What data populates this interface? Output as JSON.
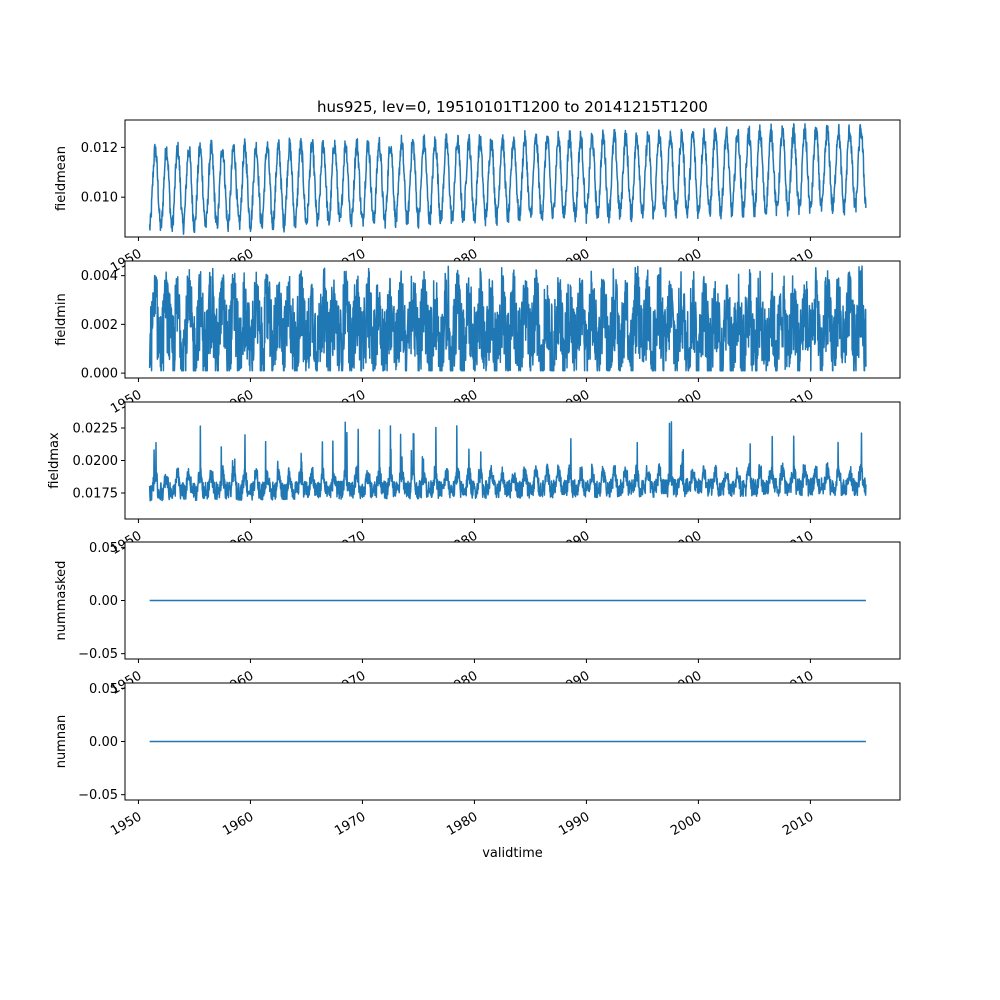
{
  "chart_data": {
    "type": "line",
    "title": "hus925, lev=0, 19510101T1200 to 20141215T1200",
    "xlabel": "validtime",
    "x_start": "1951-01-01",
    "x_end": "2014-12-15",
    "xlim": [
      1948.8,
      2018.0
    ],
    "x_ticks": [
      1950,
      1960,
      1970,
      1980,
      1990,
      2000,
      2010
    ],
    "x_tick_labels": [
      "1950",
      "1960",
      "1970",
      "1980",
      "1990",
      "2000",
      "2010"
    ],
    "line_color": "#1f77b4",
    "subplots": [
      {
        "ylabel": "fieldmean",
        "ylim": [
          0.0084,
          0.0131
        ],
        "yticks": [
          0.01,
          0.012
        ],
        "ytick_labels": [
          "0.010",
          "0.012"
        ],
        "pattern": "seasonal",
        "seasonal_min": [
          0.0088,
          0.0096
        ],
        "seasonal_max": [
          0.0119,
          0.0127
        ],
        "series": [
          {
            "values": []
          }
        ]
      },
      {
        "ylabel": "fieldmin",
        "ylim": [
          -0.0002,
          0.0046
        ],
        "yticks": [
          0.0,
          0.002,
          0.004
        ],
        "ytick_labels": [
          "0.000",
          "0.002",
          "0.004"
        ],
        "pattern": "noisy",
        "range": [
          0.0001,
          0.0044
        ],
        "series": [
          {
            "values": []
          }
        ]
      },
      {
        "ylabel": "fieldmax",
        "ylim": [
          0.0155,
          0.0245
        ],
        "yticks": [
          0.0175,
          0.02,
          0.0225
        ],
        "ytick_labels": [
          "0.0175",
          "0.0200",
          "0.0225"
        ],
        "pattern": "spiky",
        "range": [
          0.016,
          0.0243
        ],
        "series": [
          {
            "values": []
          }
        ]
      },
      {
        "ylabel": "nummasked",
        "ylim": [
          -0.055,
          0.055
        ],
        "yticks": [
          -0.05,
          0.0,
          0.05
        ],
        "ytick_labels": [
          "−0.05",
          "0.00",
          "0.05"
        ],
        "pattern": "constant",
        "value": 0.0,
        "series": [
          {
            "values": [
              0.0,
              0.0
            ]
          }
        ]
      },
      {
        "ylabel": "numnan",
        "ylim": [
          -0.055,
          0.055
        ],
        "yticks": [
          -0.05,
          0.0,
          0.05
        ],
        "ytick_labels": [
          "−0.05",
          "0.00",
          "0.05"
        ],
        "pattern": "constant",
        "value": 0.0,
        "series": [
          {
            "values": [
              0.0,
              0.0
            ]
          }
        ]
      }
    ]
  }
}
